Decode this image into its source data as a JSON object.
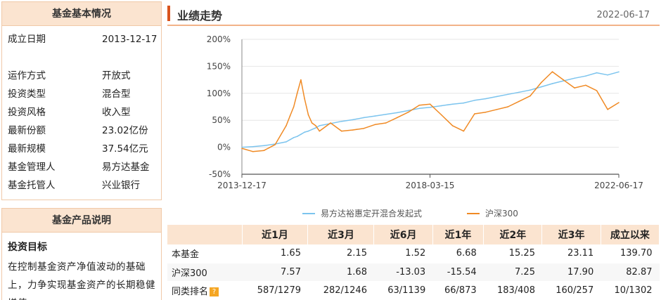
{
  "fund_info": {
    "title": "基金基本情况",
    "rows": [
      {
        "label": "成立日期",
        "value": "2013-12-17"
      },
      {
        "label": "运作方式",
        "value": "开放式"
      },
      {
        "label": "投资类型",
        "value": "混合型"
      },
      {
        "label": "投资风格",
        "value": "收入型"
      },
      {
        "label": "最新份额",
        "value": "23.02亿份"
      },
      {
        "label": "最新规模",
        "value": "37.54亿元"
      },
      {
        "label": "基金管理人",
        "value": "易方达基金"
      },
      {
        "label": "基金托管人",
        "value": "兴业银行"
      }
    ]
  },
  "product_desc": {
    "title": "基金产品说明",
    "subtitle": "投资目标",
    "text": "在控制基金资产净值波动的基础上，力争实现基金资产的长期稳健增值。"
  },
  "performance": {
    "title": "业绩走势",
    "date": "2022-06-17"
  },
  "colors": {
    "fund_line": "#7cc4ee",
    "index_line": "#f08a24",
    "accent": "#d9541e",
    "header_bg": "#fbe4d0"
  },
  "chart_data": {
    "type": "line",
    "x_ticks": [
      "2013-12-17",
      "2018-03-15",
      "2022-06-17"
    ],
    "y_ticks": [
      "200%",
      "150%",
      "100%",
      "50%",
      "0%",
      "-50%"
    ],
    "ylim": [
      -50,
      200
    ],
    "y_unit": "%",
    "grid": "horizontal",
    "legend_position": "bottom",
    "series": [
      {
        "name": "易方达裕惠定开混合发起式",
        "color": "#7cc4ee",
        "x": [
          "2013-12-17",
          "2014-03-17",
          "2014-06-17",
          "2014-09-17",
          "2014-12-17",
          "2015-01-17",
          "2015-02-17",
          "2015-03-17",
          "2015-04-17",
          "2015-05-17",
          "2015-06-17",
          "2015-07-17",
          "2015-08-17",
          "2015-09-17",
          "2015-12-17",
          "2016-03-17",
          "2016-06-17",
          "2016-09-17",
          "2016-12-17",
          "2017-03-17",
          "2017-06-17",
          "2017-09-17",
          "2017-12-17",
          "2018-03-15",
          "2018-06-17",
          "2018-09-17",
          "2018-12-17",
          "2019-03-17",
          "2019-06-17",
          "2019-09-17",
          "2019-12-17",
          "2020-03-17",
          "2020-06-17",
          "2020-09-17",
          "2020-12-17",
          "2021-03-17",
          "2021-06-17",
          "2021-09-17",
          "2021-12-17",
          "2022-03-17",
          "2022-06-17"
        ],
        "values": [
          0,
          1,
          3,
          6,
          10,
          14,
          18,
          20,
          24,
          28,
          30,
          33,
          36,
          40,
          44,
          48,
          51,
          55,
          58,
          61,
          64,
          68,
          72,
          74,
          77,
          80,
          82,
          87,
          90,
          94,
          98,
          102,
          106,
          112,
          118,
          123,
          128,
          132,
          138,
          134,
          139.7
        ]
      },
      {
        "name": "沪深300",
        "color": "#f08a24",
        "x": [
          "2013-12-17",
          "2014-03-17",
          "2014-06-17",
          "2014-09-17",
          "2014-12-17",
          "2015-01-17",
          "2015-02-17",
          "2015-03-17",
          "2015-04-17",
          "2015-05-17",
          "2015-06-17",
          "2015-07-17",
          "2015-08-17",
          "2015-09-17",
          "2015-12-17",
          "2016-03-17",
          "2016-06-17",
          "2016-09-17",
          "2016-12-17",
          "2017-03-17",
          "2017-06-17",
          "2017-09-17",
          "2017-12-17",
          "2018-03-15",
          "2018-06-17",
          "2018-09-17",
          "2018-12-17",
          "2019-03-17",
          "2019-06-17",
          "2019-09-17",
          "2019-12-17",
          "2020-03-17",
          "2020-06-17",
          "2020-09-17",
          "2020-12-17",
          "2021-03-17",
          "2021-06-17",
          "2021-09-17",
          "2021-12-17",
          "2022-03-17",
          "2022-06-17"
        ],
        "values": [
          -2,
          -8,
          -6,
          5,
          40,
          58,
          75,
          100,
          125,
          90,
          60,
          45,
          40,
          30,
          45,
          30,
          32,
          35,
          42,
          45,
          55,
          65,
          78,
          80,
          60,
          40,
          30,
          62,
          65,
          70,
          75,
          85,
          95,
          120,
          140,
          125,
          110,
          115,
          105,
          70,
          82.87
        ]
      }
    ]
  },
  "table": {
    "headers": [
      "",
      "近1月",
      "近3月",
      "近6月",
      "近1年",
      "近2年",
      "近3年",
      "成立以来"
    ],
    "rows": [
      {
        "label": "本基金",
        "values": [
          "1.65",
          "2.15",
          "1.52",
          "6.68",
          "15.25",
          "23.11",
          "139.70"
        ]
      },
      {
        "label": "沪深300",
        "values": [
          "7.57",
          "1.68",
          "-13.03",
          "-15.54",
          "7.25",
          "17.90",
          "82.87"
        ]
      },
      {
        "label": "同类排名",
        "values": [
          "587/1279",
          "282/1246",
          "63/1139",
          "66/873",
          "183/408",
          "160/257",
          "10/1302"
        ],
        "help": "?"
      }
    ]
  }
}
